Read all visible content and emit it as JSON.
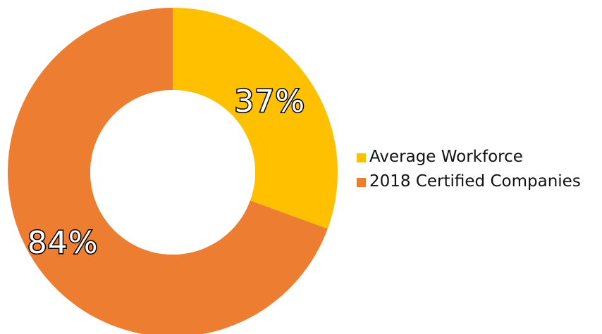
{
  "chart_data": {
    "type": "pie",
    "style": "donut",
    "labels": [
      "Average Workforce",
      "2018 Certified Companies"
    ],
    "values": [
      37,
      84
    ],
    "display_labels": [
      "37%",
      "84%"
    ],
    "colors": [
      "#FFC000",
      "#ED7D31"
    ],
    "legend_position": "right",
    "start_angle_degrees": 0,
    "direction": "clockwise"
  }
}
